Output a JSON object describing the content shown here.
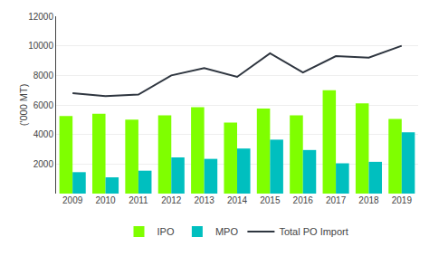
{
  "chart_data": {
    "type": "bar",
    "categories": [
      "2009",
      "2010",
      "2011",
      "2012",
      "2013",
      "2014",
      "2015",
      "2016",
      "2017",
      "2018",
      "2019"
    ],
    "series": [
      {
        "name": "IPO",
        "type": "bar",
        "color": "#7FFF00",
        "values": [
          5250,
          5400,
          5000,
          5300,
          5850,
          4800,
          5750,
          5300,
          7000,
          6100,
          5050
        ]
      },
      {
        "name": "MPO",
        "type": "bar",
        "color": "#00BFBF",
        "values": [
          1450,
          1100,
          1550,
          2450,
          2350,
          3050,
          3650,
          2950,
          2050,
          2150,
          4150
        ]
      },
      {
        "name": "Total PO Import",
        "type": "line",
        "color": "#2F3640",
        "values": [
          6800,
          6600,
          6700,
          8000,
          8500,
          7900,
          9500,
          8200,
          9300,
          9200,
          10000
        ]
      }
    ],
    "ylabel": "('000 MT)",
    "ylim": [
      0,
      12000
    ],
    "yticks": [
      2000,
      4000,
      6000,
      8000,
      10000,
      12000
    ],
    "grid": true,
    "legend": "bottom"
  }
}
